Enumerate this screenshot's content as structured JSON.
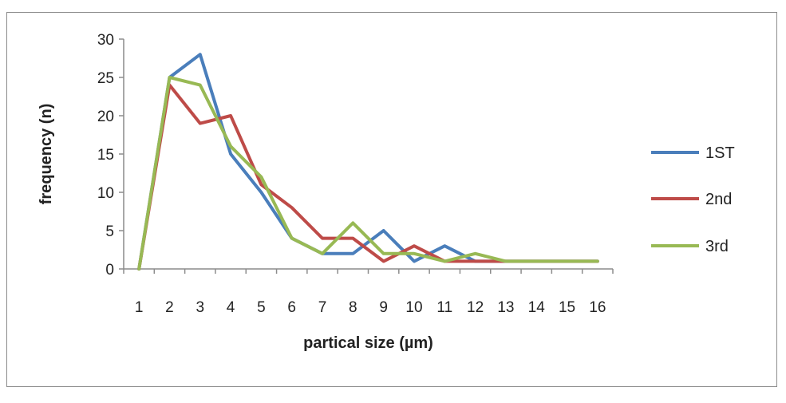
{
  "chart_data": {
    "type": "line",
    "xlabel": "partical size (µm)",
    "ylabel": "frequency (n)",
    "categories": [
      "1",
      "2",
      "3",
      "4",
      "5",
      "6",
      "7",
      "8",
      "9",
      "10",
      "11",
      "12",
      "13",
      "14",
      "15",
      "16"
    ],
    "ylim": [
      0,
      30
    ],
    "yticks": [
      0,
      5,
      10,
      15,
      20,
      25,
      30
    ],
    "grid": false,
    "legend_position": "right",
    "series": [
      {
        "name": "1ST",
        "color": "#4a7ebb",
        "values": [
          0,
          25,
          28,
          15,
          10,
          4,
          2,
          2,
          5,
          1,
          3,
          1,
          1,
          1,
          1,
          1
        ]
      },
      {
        "name": "2nd",
        "color": "#be4b48",
        "values": [
          0,
          24,
          19,
          20,
          11,
          8,
          4,
          4,
          1,
          3,
          1,
          1,
          1,
          1,
          1,
          1
        ]
      },
      {
        "name": "3rd",
        "color": "#98b954",
        "values": [
          0,
          25,
          24,
          16,
          12,
          4,
          2,
          6,
          2,
          2,
          1,
          2,
          1,
          1,
          1,
          1
        ]
      }
    ]
  }
}
